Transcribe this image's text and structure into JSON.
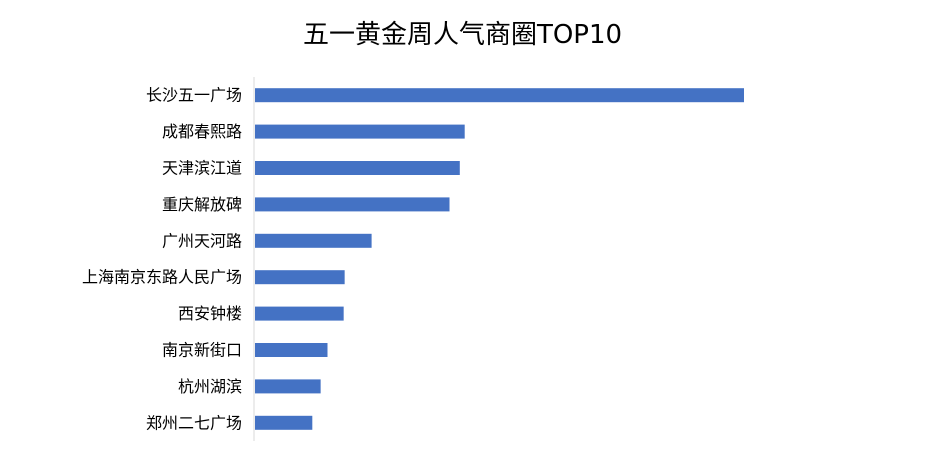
{
  "chart_data": {
    "type": "bar",
    "orientation": "horizontal",
    "title": "五一黄金周人气商圈TOP10",
    "categories": [
      "长沙五一广场",
      "成都春熙路",
      "天津滨江道",
      "重庆解放碑",
      "广州天河路",
      "上海南京东路人民广场",
      "西安钟楼",
      "南京新街口",
      "杭州湖滨",
      "郑州二七广场"
    ],
    "values": [
      100,
      43,
      42,
      39.9,
      24,
      18.5,
      18.3,
      15,
      13.6,
      11.9
    ],
    "xlim": [
      0,
      100
    ],
    "grid": false,
    "legend": "none",
    "bar_color": "#4472C4",
    "axis_color": "#D9D9D9"
  }
}
